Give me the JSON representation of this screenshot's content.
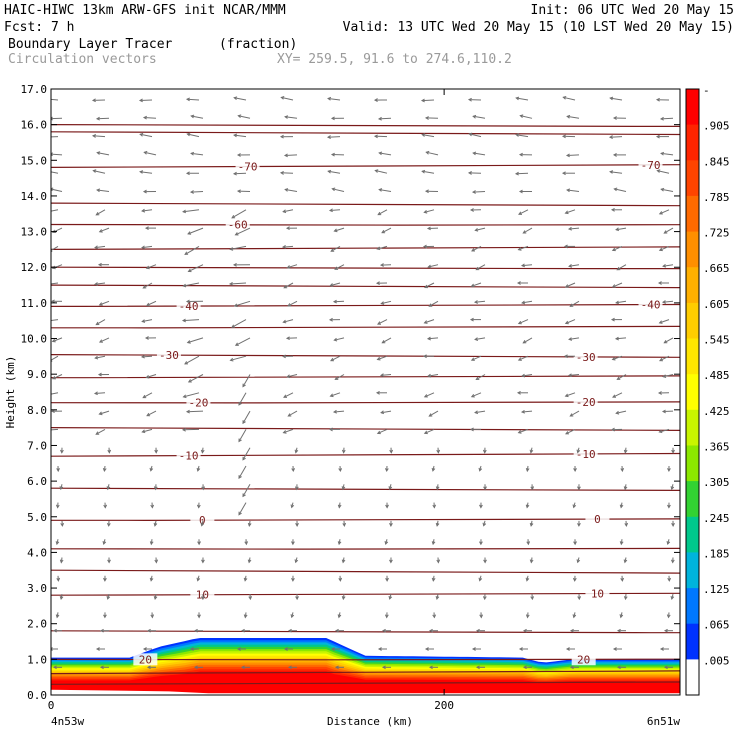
{
  "header": {
    "line1_left": "HAIC-HIWC 13km ARW-GFS init   NCAR/MMM",
    "line1_right": "Init: 06 UTC Wed 20 May 15",
    "line2_left": "Fcst:    7 h",
    "line2_right": "Valid: 13 UTC Wed 20 May 15 (10 LST Wed 20 May 15)",
    "line3_left": "Boundary Layer Tracer",
    "line3_units": "(fraction)",
    "line4_left": "Circulation vectors",
    "line4_xy": "XY= 259.5, 91.6 to 274.6,110.2"
  },
  "chart_data": {
    "type": "heatmap",
    "ylabel": "Height (km)",
    "xlabel": "Distance (km)",
    "ylim": [
      0,
      17
    ],
    "xlim": [
      0,
      320
    ],
    "y_ticks": [
      "0.0",
      "1.0",
      "2.0",
      "3.0",
      "4.0",
      "5.0",
      "6.0",
      "7.0",
      "8.0",
      "9.0",
      "10.0",
      "11.0",
      "12.0",
      "13.0",
      "14.0",
      "15.0",
      "16.0",
      "17.0"
    ],
    "x_ticks": [
      {
        "value": 0,
        "label": "0"
      },
      {
        "value": 200,
        "label": "200"
      }
    ],
    "x_endpoints": {
      "left": "4n53w",
      "right": "6n51w"
    },
    "colorbar": {
      "labels": [
        "-",
        ".905",
        ".845",
        ".785",
        ".725",
        ".665",
        ".605",
        ".545",
        ".485",
        ".425",
        ".365",
        ".305",
        ".245",
        ".185",
        ".125",
        ".065",
        ".005"
      ],
      "colors": [
        "#ff0000",
        "#ff2400",
        "#ff4400",
        "#ff6a00",
        "#ff8f00",
        "#ffb000",
        "#ffcd00",
        "#ffe600",
        "#ffff00",
        "#c8f500",
        "#8ce800",
        "#32d232",
        "#00c88c",
        "#00b4dc",
        "#0078ff",
        "#0032ff",
        "#ffffff"
      ]
    },
    "contours": [
      {
        "label": "-70",
        "y": 14.8,
        "labels_at": [
          100,
          305
        ]
      },
      {
        "label": "-60",
        "y": 13.2,
        "labels_at": [
          95
        ]
      },
      {
        "label": "-40",
        "y": 10.9,
        "labels_at": [
          70,
          305
        ]
      },
      {
        "label": "-30",
        "y": 9.55,
        "labels_at": [
          60,
          272
        ]
      },
      {
        "label": "-20",
        "y": 8.2,
        "labels_at": [
          75,
          272
        ]
      },
      {
        "label": "-10",
        "y": 6.7,
        "labels_at": [
          70,
          272
        ]
      },
      {
        "label": "0",
        "y": 4.9,
        "labels_at": [
          77,
          278
        ]
      },
      {
        "label": "10",
        "y": 2.8,
        "labels_at": [
          77,
          278
        ]
      },
      {
        "label": "20",
        "y": 1.0,
        "labels_at": [
          48,
          271
        ]
      }
    ],
    "unlabeled_contour_heights": [
      0.3,
      0.6,
      1.8,
      3.5,
      4.1,
      5.8,
      7.5,
      8.9,
      10.3,
      11.5,
      12.0,
      12.5,
      13.8,
      15.8,
      16.0
    ],
    "tracer_top_km": [
      {
        "x": 0,
        "y": 1.05
      },
      {
        "x": 40,
        "y": 1.05
      },
      {
        "x": 55,
        "y": 1.35
      },
      {
        "x": 75,
        "y": 1.6
      },
      {
        "x": 140,
        "y": 1.6
      },
      {
        "x": 160,
        "y": 1.1
      },
      {
        "x": 240,
        "y": 1.05
      },
      {
        "x": 250,
        "y": 0.9
      },
      {
        "x": 265,
        "y": 1.0
      },
      {
        "x": 320,
        "y": 1.0
      }
    ],
    "terrain_km": [
      {
        "x": 0,
        "y": 0.15
      },
      {
        "x": 60,
        "y": 0.1
      },
      {
        "x": 80,
        "y": 0.05
      },
      {
        "x": 320,
        "y": 0.05
      }
    ],
    "grid": false
  }
}
